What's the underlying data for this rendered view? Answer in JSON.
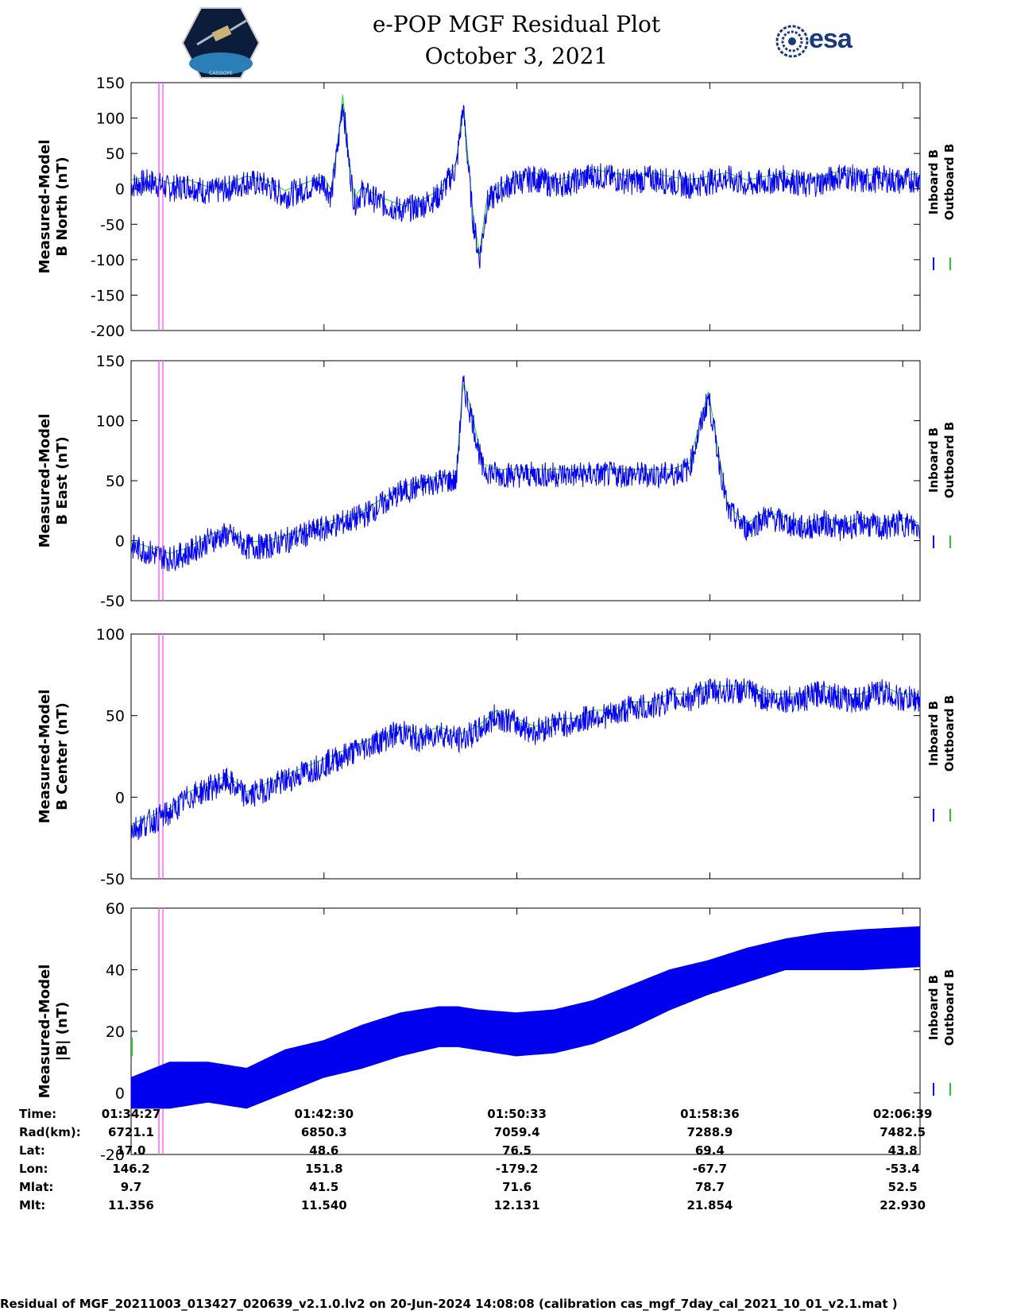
{
  "header": {
    "title_line1": "e-POP MGF Residual Plot",
    "title_line2": "October 3, 2021",
    "esa_logo_text": "esa",
    "cassiope_logo_text": "CASSIOPE"
  },
  "colors": {
    "inboard": "#0000ee",
    "outboard": "#22cc22",
    "marker": "#ff66ff"
  },
  "legend": {
    "inboard": "Inboard B",
    "outboard": "Outboard B"
  },
  "chart_data": [
    {
      "type": "line",
      "ylabel_line1": "Measured-Model",
      "ylabel_line2": "B North (nT)",
      "ylim": [
        -200,
        150
      ],
      "yticks": [
        "150",
        "100",
        "50",
        "0",
        "-50",
        "-100",
        "-150",
        "-200"
      ],
      "series": [
        {
          "name": "Inboard B",
          "x_minutes": [
            0,
            2,
            4,
            6,
            8,
            10,
            12,
            14,
            16,
            18,
            20,
            20.8,
            21.5,
            22,
            22.6,
            23.2,
            24,
            26,
            28,
            30,
            32,
            33.8,
            34.5,
            35,
            35.5,
            36.2,
            37,
            38.5,
            40,
            42,
            44,
            46,
            48,
            50,
            52,
            54,
            56,
            58,
            60,
            62,
            64,
            66,
            68,
            70,
            72,
            74,
            76,
            78,
            80,
            82
          ],
          "values": [
            5,
            10,
            0,
            5,
            -5,
            0,
            10,
            5,
            -10,
            0,
            10,
            -10,
            60,
            125,
            40,
            -20,
            -5,
            -20,
            -30,
            -25,
            -10,
            30,
            115,
            40,
            -40,
            -100,
            -20,
            0,
            10,
            15,
            5,
            10,
            20,
            15,
            10,
            15,
            10,
            5,
            10,
            15,
            5,
            10,
            15,
            5,
            10,
            20,
            10,
            15,
            10,
            15
          ]
        },
        {
          "name": "Outboard B",
          "x_minutes": [
            0,
            82
          ],
          "values": [
            0,
            0
          ]
        }
      ]
    },
    {
      "type": "line",
      "ylabel_line1": "Measured-Model",
      "ylabel_line2": "B East (nT)",
      "ylim": [
        -50,
        150
      ],
      "yticks": [
        "150",
        "100",
        "50",
        "0",
        "-50"
      ],
      "series": [
        {
          "name": "Inboard B",
          "x_minutes": [
            0,
            2,
            4,
            6,
            8,
            10,
            12,
            14,
            16,
            18,
            20,
            22,
            24,
            26,
            28,
            30,
            32,
            33.8,
            34.5,
            35.5,
            36.5,
            38,
            40,
            42,
            44,
            46,
            48,
            50,
            52,
            54,
            56,
            58,
            60,
            62,
            64,
            66,
            68,
            70,
            72,
            74,
            76,
            78,
            80,
            82
          ],
          "values": [
            -5,
            -10,
            -15,
            -10,
            0,
            5,
            -5,
            -5,
            0,
            5,
            10,
            15,
            20,
            30,
            40,
            45,
            50,
            50,
            130,
            100,
            60,
            55,
            55,
            55,
            55,
            55,
            55,
            55,
            55,
            55,
            55,
            60,
            120,
            25,
            10,
            20,
            15,
            10,
            15,
            10,
            15,
            10,
            15,
            10
          ]
        },
        {
          "name": "Outboard B",
          "x_minutes": [
            0,
            82
          ],
          "values": [
            0,
            0
          ]
        }
      ]
    },
    {
      "type": "line",
      "ylabel_line1": "Measured-Model",
      "ylabel_line2": "B Center (nT)",
      "ylim": [
        -50,
        100
      ],
      "yticks": [
        "100",
        "50",
        "0",
        "-50"
      ],
      "series": [
        {
          "name": "Inboard B",
          "x_minutes": [
            0,
            2,
            4,
            6,
            8,
            10,
            12,
            14,
            16,
            18,
            20,
            22,
            24,
            26,
            28,
            30,
            32,
            34,
            36,
            38,
            40,
            42,
            44,
            46,
            48,
            50,
            52,
            54,
            56,
            58,
            60,
            62,
            64,
            66,
            68,
            70,
            72,
            74,
            76,
            78,
            80,
            82
          ],
          "values": [
            -20,
            -15,
            -10,
            0,
            5,
            10,
            0,
            5,
            10,
            15,
            20,
            25,
            30,
            35,
            40,
            35,
            40,
            35,
            40,
            50,
            45,
            40,
            45,
            45,
            50,
            50,
            55,
            55,
            60,
            60,
            65,
            65,
            65,
            60,
            60,
            60,
            65,
            60,
            60,
            65,
            60,
            60
          ]
        },
        {
          "name": "Outboard B",
          "x_minutes": [
            0,
            82
          ],
          "values": [
            0,
            0
          ]
        }
      ]
    },
    {
      "type": "area",
      "ylabel_line1": "Measured-Model",
      "ylabel_line2": "|B| (nT)",
      "ylim": [
        -20,
        60
      ],
      "yticks": [
        "60",
        "40",
        "20",
        "0",
        "-20"
      ],
      "series": [
        {
          "name": "Inboard B upper",
          "x_minutes": [
            0,
            4,
            8,
            12,
            16,
            20,
            24,
            28,
            32,
            34,
            36,
            40,
            44,
            48,
            52,
            56,
            60,
            64,
            68,
            72,
            76,
            82
          ],
          "values": [
            5,
            10,
            10,
            8,
            14,
            17,
            22,
            26,
            28,
            28,
            27,
            26,
            27,
            30,
            35,
            40,
            43,
            47,
            50,
            52,
            53,
            54
          ]
        },
        {
          "name": "Inboard B lower",
          "x_minutes": [
            0,
            4,
            8,
            12,
            16,
            20,
            24,
            28,
            32,
            34,
            36,
            40,
            44,
            48,
            52,
            56,
            60,
            64,
            68,
            72,
            76,
            82
          ],
          "values": [
            -5,
            -5,
            -3,
            -5,
            0,
            5,
            8,
            12,
            15,
            15,
            14,
            12,
            13,
            16,
            21,
            27,
            32,
            36,
            40,
            40,
            40,
            41
          ]
        }
      ]
    }
  ],
  "xaxis": {
    "ticks_minutes": [
      0,
      20.05,
      40.1,
      60.15,
      80.2
    ],
    "rows": [
      {
        "label": "Time:",
        "values": [
          "01:34:27",
          "01:42:30",
          "01:50:33",
          "01:58:36",
          "02:06:39"
        ]
      },
      {
        "label": "Rad(km):",
        "values": [
          "6721.1",
          "6850.3",
          "7059.4",
          "7288.9",
          "7482.5"
        ]
      },
      {
        "label": "Lat:",
        "values": [
          "17.0",
          "48.6",
          "76.5",
          "69.4",
          "43.8"
        ]
      },
      {
        "label": "Lon:",
        "values": [
          "146.2",
          "151.8",
          "-179.2",
          "-67.7",
          "-53.4"
        ]
      },
      {
        "label": "Mlat:",
        "values": [
          "9.7",
          "41.5",
          "71.6",
          "78.7",
          "52.5"
        ]
      },
      {
        "label": "Mlt:",
        "values": [
          "11.356",
          "11.540",
          "12.131",
          "21.854",
          "22.930"
        ]
      }
    ]
  },
  "footer": "Residual of MGF_20211003_013427_020639_v2.1.0.lv2 on 20-Jun-2024 14:08:08 (calibration cas_mgf_7day_cal_2021_10_01_v2.1.mat )"
}
